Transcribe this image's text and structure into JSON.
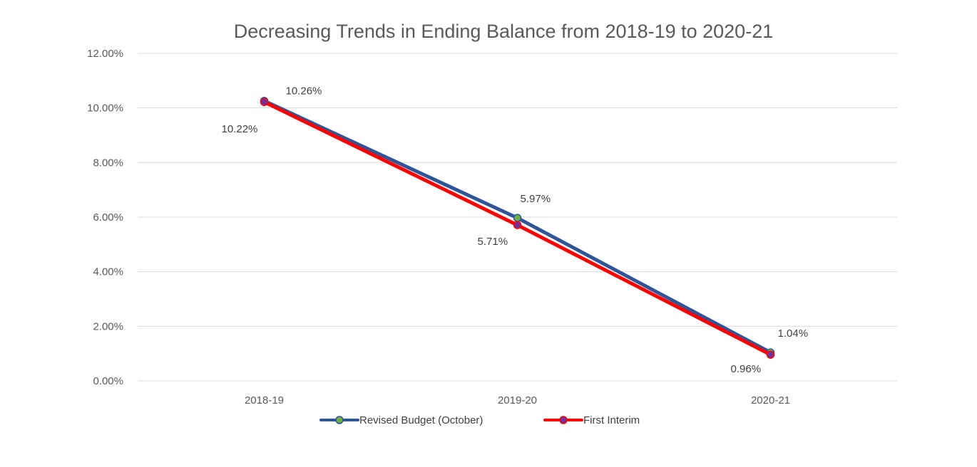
{
  "chart_data": {
    "type": "line",
    "title": "Decreasing Trends in Ending Balance from 2018-19 to 2020-21",
    "xlabel": "",
    "ylabel": "",
    "categories": [
      "2018-19",
      "2019-20",
      "2020-21"
    ],
    "ylim": [
      0,
      0.12
    ],
    "ytick_values": [
      0,
      0.02,
      0.04,
      0.06,
      0.08,
      0.1,
      0.12
    ],
    "ytick_labels": [
      "0.00%",
      "2.00%",
      "4.00%",
      "6.00%",
      "8.00%",
      "10.00%",
      "12.00%"
    ],
    "grid": true,
    "legend_position": "bottom",
    "series": [
      {
        "name": "Revised Budget (October)",
        "values": [
          0.1026,
          0.0597,
          0.0104
        ],
        "labels": [
          "10.26%",
          "5.97%",
          "1.04%"
        ],
        "line_color": "#2f5597",
        "marker_color": "#70ad47"
      },
      {
        "name": "First Interim",
        "values": [
          0.1022,
          0.0571,
          0.0096
        ],
        "labels": [
          "10.22%",
          "5.71%",
          "0.96%"
        ],
        "line_color": "#ff0000",
        "marker_color": "#7030a0"
      }
    ]
  }
}
